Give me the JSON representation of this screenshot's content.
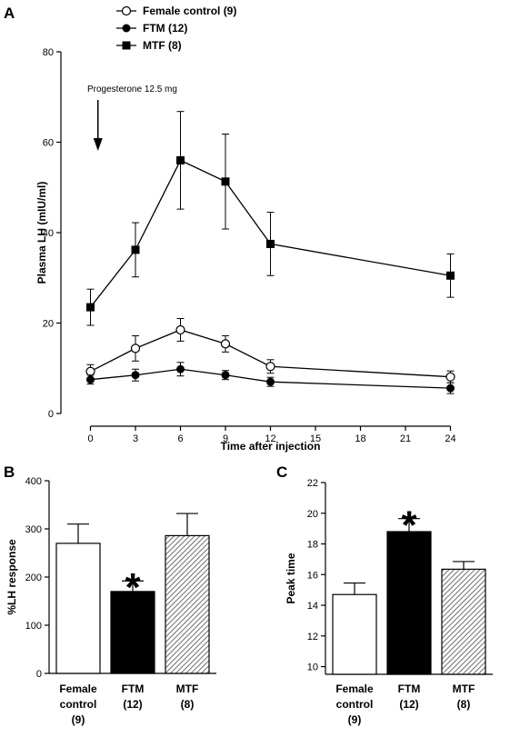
{
  "figure": {
    "panel_labels": [
      "A",
      "B",
      "C"
    ],
    "colors": {
      "ink": "#000000",
      "open_fill": "#ffffff",
      "ftm_fill": "#000000",
      "mtf_hatch": "#6e6e6e"
    }
  },
  "chart_data": [
    {
      "panel": "A",
      "type": "line",
      "title": "",
      "xlabel": "Time after injection",
      "ylabel": "Plasma LH (mIU/ml)",
      "xlim": [
        -1,
        25
      ],
      "ylim": [
        0,
        80
      ],
      "x_ticks": [
        0,
        3,
        6,
        9,
        12,
        15,
        18,
        21,
        24
      ],
      "y_ticks": [
        0,
        20,
        40,
        60,
        80
      ],
      "legend_position": "top-left",
      "annotation": "Progesterone 12.5 mg",
      "arrow_x": 0.5,
      "x": [
        0,
        3,
        6,
        9,
        12,
        24
      ],
      "series": [
        {
          "name": "Female control (9)",
          "marker": "open-circle",
          "values": [
            9.3,
            14.4,
            18.5,
            15.4,
            10.4,
            8.1
          ],
          "errors": [
            1.5,
            2.8,
            2.5,
            1.8,
            1.5,
            1.3
          ]
        },
        {
          "name": "FTM (12)",
          "marker": "filled-circle",
          "values": [
            7.5,
            8.5,
            9.8,
            8.5,
            7.0,
            5.6
          ],
          "errors": [
            1.0,
            1.3,
            1.5,
            1.0,
            1.0,
            1.2
          ]
        },
        {
          "name": "MTF (8)",
          "marker": "filled-square",
          "values": [
            23.5,
            36.2,
            56.0,
            51.3,
            37.5,
            30.5
          ],
          "errors": [
            4.0,
            6.0,
            10.8,
            10.5,
            7.0,
            4.8
          ]
        }
      ]
    },
    {
      "panel": "B",
      "type": "bar",
      "title": "",
      "xlabel": "",
      "ylabel": "%LH response",
      "ylim": [
        0,
        400
      ],
      "y_ticks": [
        0,
        100,
        200,
        300,
        400
      ],
      "categories": [
        [
          "Female",
          "control",
          "(9)"
        ],
        [
          "FTM",
          "(12)"
        ],
        [
          "MTF",
          "(8)"
        ]
      ],
      "values": [
        270,
        170,
        286
      ],
      "errors": [
        40,
        22,
        46
      ],
      "styles": [
        "open",
        "filled",
        "hatched"
      ],
      "significance": [
        "",
        "*",
        ""
      ]
    },
    {
      "panel": "C",
      "type": "bar",
      "title": "",
      "xlabel": "",
      "ylabel": "Peak time",
      "ylim": [
        9.5,
        22
      ],
      "y_ticks": [
        10,
        12,
        14,
        16,
        18,
        20,
        22
      ],
      "categories": [
        [
          "Female",
          "control",
          "(9)"
        ],
        [
          "FTM",
          "(12)"
        ],
        [
          "MTF",
          "(8)"
        ]
      ],
      "values": [
        14.7,
        18.8,
        16.35
      ],
      "errors": [
        0.75,
        0.85,
        0.5
      ],
      "styles": [
        "open",
        "filled",
        "hatched"
      ],
      "significance": [
        "",
        "*",
        ""
      ]
    }
  ]
}
